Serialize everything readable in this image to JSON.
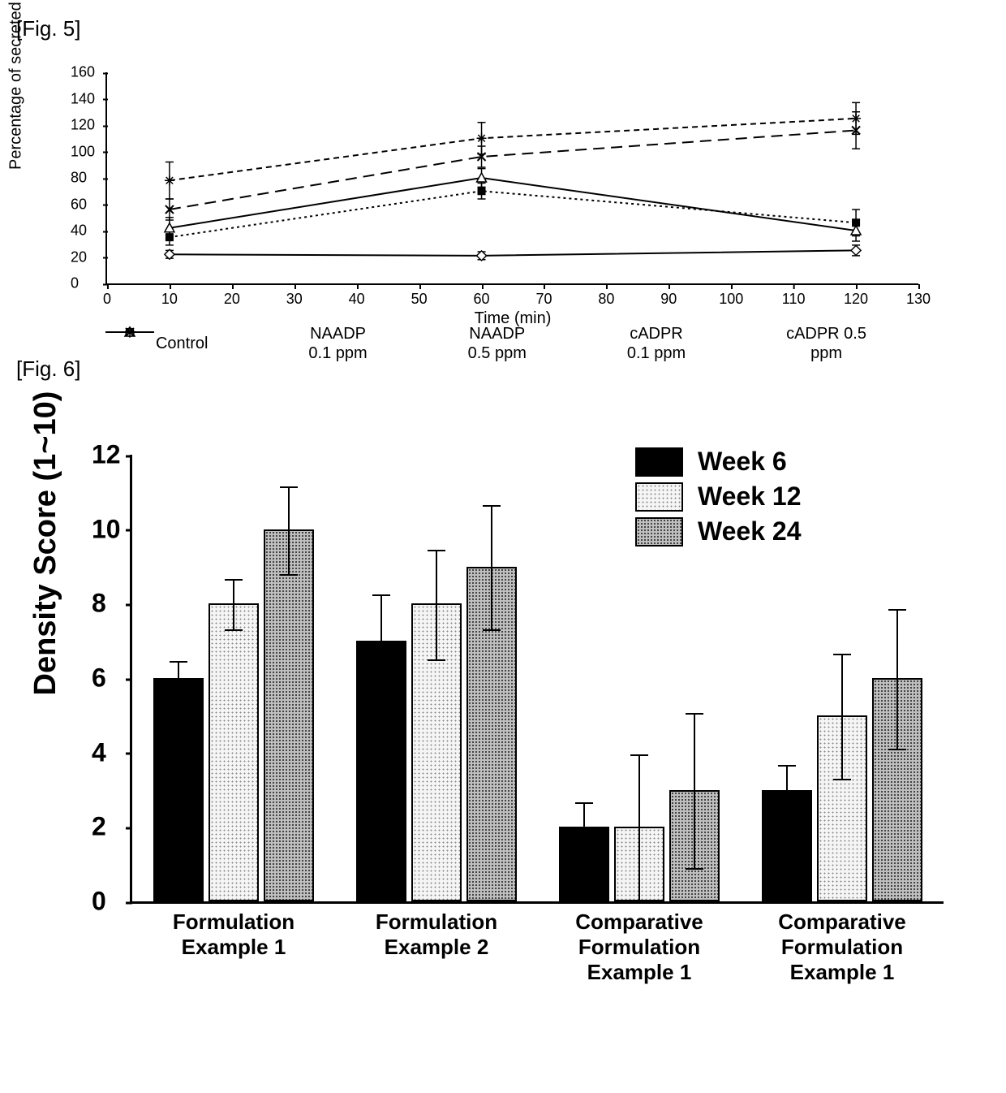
{
  "fig5": {
    "label": "[Fig. 5]",
    "type": "line",
    "xlabel": "Time (min)",
    "ylabel": "Percentage of secreted CA amount (%)",
    "xlim": [
      0,
      130
    ],
    "ylim": [
      0,
      160
    ],
    "xticks": [
      0,
      10,
      20,
      30,
      40,
      50,
      60,
      70,
      80,
      90,
      100,
      110,
      120,
      130
    ],
    "yticks": [
      0,
      20,
      40,
      60,
      80,
      100,
      120,
      140,
      160
    ],
    "tick_fontsize": 18,
    "label_fontsize": 20,
    "line_color": "#000000",
    "background_color": "#ffffff",
    "series": [
      {
        "name": "Control",
        "legend_label_line1": "Control",
        "legend_label_line2": "",
        "dash": "solid",
        "marker": "diamond-open",
        "x": [
          10,
          60,
          120
        ],
        "y": [
          22,
          21,
          25
        ],
        "err": [
          3,
          3,
          4
        ]
      },
      {
        "name": "NAADP 0.1 ppm",
        "legend_label_line1": "NAADP",
        "legend_label_line2": "0.1 ppm",
        "dash": "dot",
        "marker": "square-filled",
        "x": [
          10,
          60,
          120
        ],
        "y": [
          35,
          70,
          46
        ],
        "err": [
          6,
          6,
          10
        ]
      },
      {
        "name": "NAADP 0.5 ppm",
        "legend_label_line1": "NAADP",
        "legend_label_line2": "0.5 ppm",
        "dash": "solid",
        "marker": "triangle-open",
        "x": [
          10,
          60,
          120
        ],
        "y": [
          42,
          80,
          40
        ],
        "err": [
          8,
          7,
          8
        ]
      },
      {
        "name": "cADPR 0.1 ppm",
        "legend_label_line1": "cADPR",
        "legend_label_line2": "0.1 ppm",
        "dash": "longdash",
        "marker": "x",
        "x": [
          10,
          60,
          120
        ],
        "y": [
          56,
          96,
          116
        ],
        "err": [
          8,
          8,
          14
        ]
      },
      {
        "name": "cADPR 0.5 ppm",
        "legend_label_line1": "cADPR 0.5",
        "legend_label_line2": "ppm",
        "dash": "shortdash",
        "marker": "asterisk",
        "x": [
          10,
          60,
          120
        ],
        "y": [
          78,
          110,
          125
        ],
        "err": [
          14,
          12,
          12
        ]
      }
    ]
  },
  "fig6": {
    "label": "[Fig. 6]",
    "type": "bar",
    "ylabel": "Density Score (1~10)",
    "ylim": [
      0,
      12
    ],
    "yticks": [
      0,
      2,
      4,
      6,
      8,
      10,
      12
    ],
    "tick_fontsize": 32,
    "label_fontsize": 38,
    "bar_border_color": "#000000",
    "error_color": "#000000",
    "background_color": "#ffffff",
    "series_fill": {
      "Week 6": "#000000",
      "Week 12": "#e8e8e8",
      "Week 24": "#a8a8a8"
    },
    "series_pattern": {
      "Week 6": "solid",
      "Week 12": "dots-light",
      "Week 24": "dots-dark"
    },
    "legend_labels": [
      "Week 6",
      "Week 12",
      "Week 24"
    ],
    "categories": [
      {
        "label_line1": "Formulation",
        "label_line2": "Example 1",
        "label_line3": "",
        "values": {
          "Week 6": 6.0,
          "Week 12": 8.0,
          "Week 24": 10.0
        },
        "errors": {
          "Week 6": 0.5,
          "Week 12": 0.7,
          "Week 24": 1.2
        }
      },
      {
        "label_line1": "Formulation",
        "label_line2": "Example 2",
        "label_line3": "",
        "values": {
          "Week 6": 7.0,
          "Week 12": 8.0,
          "Week 24": 9.0
        },
        "errors": {
          "Week 6": 1.3,
          "Week 12": 1.5,
          "Week 24": 1.7
        }
      },
      {
        "label_line1": "Comparative",
        "label_line2": "Formulation",
        "label_line3": "Example 1",
        "values": {
          "Week 6": 2.0,
          "Week 12": 2.0,
          "Week 24": 3.0
        },
        "errors": {
          "Week 6": 0.7,
          "Week 12": 2.0,
          "Week 24": 2.1
        }
      },
      {
        "label_line1": "Comparative",
        "label_line2": "Formulation",
        "label_line3": "Example 1",
        "values": {
          "Week 6": 3.0,
          "Week 12": 5.0,
          "Week 24": 6.0
        },
        "errors": {
          "Week 6": 0.7,
          "Week 12": 1.7,
          "Week 24": 1.9
        }
      }
    ]
  }
}
